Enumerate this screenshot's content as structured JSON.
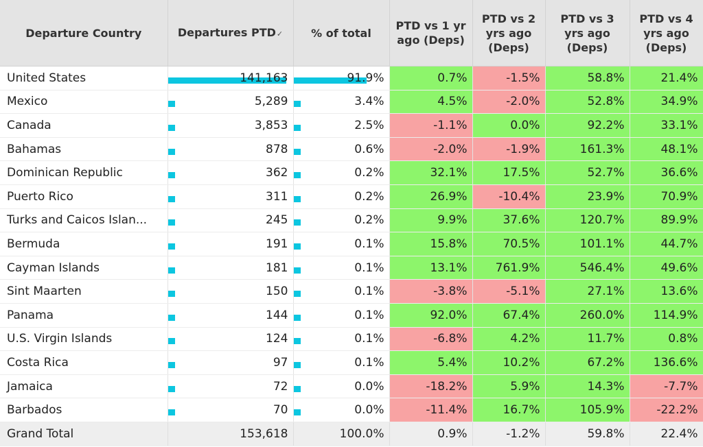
{
  "chart_data": {
    "type": "table",
    "columns": [
      {
        "label": "Departure Country",
        "sort_indicator": ""
      },
      {
        "label": "Departures PTD",
        "sort_indicator": "✓"
      },
      {
        "label": "% of total",
        "sort_indicator": ""
      },
      {
        "label": "PTD vs 1 yr ago (Deps)",
        "sort_indicator": ""
      },
      {
        "label": "PTD vs 2 yrs ago (Deps)",
        "sort_indicator": ""
      },
      {
        "label": "PTD vs 3 yrs ago (Deps)",
        "sort_indicator": ""
      },
      {
        "label": "PTD vs 4 yrs ago (Deps)",
        "sort_indicator": ""
      }
    ],
    "colors": {
      "bar": "#0cc6e0",
      "positive": "#8df56b",
      "negative": "#f8a3a3"
    },
    "rows": [
      {
        "country": "United States",
        "departures": "141,163",
        "departures_value": 141163,
        "share": "91.9%",
        "share_value": 91.9,
        "vs1": "0.7%",
        "vs2": "-1.5%",
        "vs3": "58.8%",
        "vs4": "21.4%"
      },
      {
        "country": "Mexico",
        "departures": "5,289",
        "departures_value": 5289,
        "share": "3.4%",
        "share_value": 3.4,
        "vs1": "4.5%",
        "vs2": "-2.0%",
        "vs3": "52.8%",
        "vs4": "34.9%"
      },
      {
        "country": "Canada",
        "departures": "3,853",
        "departures_value": 3853,
        "share": "2.5%",
        "share_value": 2.5,
        "vs1": "-1.1%",
        "vs2": "0.0%",
        "vs3": "92.2%",
        "vs4": "33.1%"
      },
      {
        "country": "Bahamas",
        "departures": "878",
        "departures_value": 878,
        "share": "0.6%",
        "share_value": 0.6,
        "vs1": "-2.0%",
        "vs2": "-1.9%",
        "vs3": "161.3%",
        "vs4": "48.1%"
      },
      {
        "country": "Dominican Republic",
        "departures": "362",
        "departures_value": 362,
        "share": "0.2%",
        "share_value": 0.2,
        "vs1": "32.1%",
        "vs2": "17.5%",
        "vs3": "52.7%",
        "vs4": "36.6%"
      },
      {
        "country": "Puerto Rico",
        "departures": "311",
        "departures_value": 311,
        "share": "0.2%",
        "share_value": 0.2,
        "vs1": "26.9%",
        "vs2": "-10.4%",
        "vs3": "23.9%",
        "vs4": "70.9%"
      },
      {
        "country": "Turks and Caicos Islan...",
        "departures": "245",
        "departures_value": 245,
        "share": "0.2%",
        "share_value": 0.2,
        "vs1": "9.9%",
        "vs2": "37.6%",
        "vs3": "120.7%",
        "vs4": "89.9%"
      },
      {
        "country": "Bermuda",
        "departures": "191",
        "departures_value": 191,
        "share": "0.1%",
        "share_value": 0.1,
        "vs1": "15.8%",
        "vs2": "70.5%",
        "vs3": "101.1%",
        "vs4": "44.7%"
      },
      {
        "country": "Cayman Islands",
        "departures": "181",
        "departures_value": 181,
        "share": "0.1%",
        "share_value": 0.1,
        "vs1": "13.1%",
        "vs2": "761.9%",
        "vs3": "546.4%",
        "vs4": "49.6%"
      },
      {
        "country": "Sint Maarten",
        "departures": "150",
        "departures_value": 150,
        "share": "0.1%",
        "share_value": 0.1,
        "vs1": "-3.8%",
        "vs2": "-5.1%",
        "vs3": "27.1%",
        "vs4": "13.6%"
      },
      {
        "country": "Panama",
        "departures": "144",
        "departures_value": 144,
        "share": "0.1%",
        "share_value": 0.1,
        "vs1": "92.0%",
        "vs2": "67.4%",
        "vs3": "260.0%",
        "vs4": "114.9%"
      },
      {
        "country": "U.S. Virgin Islands",
        "departures": "124",
        "departures_value": 124,
        "share": "0.1%",
        "share_value": 0.1,
        "vs1": "-6.8%",
        "vs2": "4.2%",
        "vs3": "11.7%",
        "vs4": "0.8%"
      },
      {
        "country": "Costa Rica",
        "departures": "97",
        "departures_value": 97,
        "share": "0.1%",
        "share_value": 0.1,
        "vs1": "5.4%",
        "vs2": "10.2%",
        "vs3": "67.2%",
        "vs4": "136.6%"
      },
      {
        "country": "Jamaica",
        "departures": "72",
        "departures_value": 72,
        "share": "0.0%",
        "share_value": 0.0,
        "vs1": "-18.2%",
        "vs2": "5.9%",
        "vs3": "14.3%",
        "vs4": "-7.7%"
      },
      {
        "country": "Barbados",
        "departures": "70",
        "departures_value": 70,
        "share": "0.0%",
        "share_value": 0.0,
        "vs1": "-11.4%",
        "vs2": "16.7%",
        "vs3": "105.9%",
        "vs4": "-22.2%"
      }
    ],
    "total": {
      "country": "Grand Total",
      "departures": "153,618",
      "share": "100.0%",
      "vs1": "0.9%",
      "vs2": "-1.2%",
      "vs3": "59.8%",
      "vs4": "22.4%"
    }
  }
}
